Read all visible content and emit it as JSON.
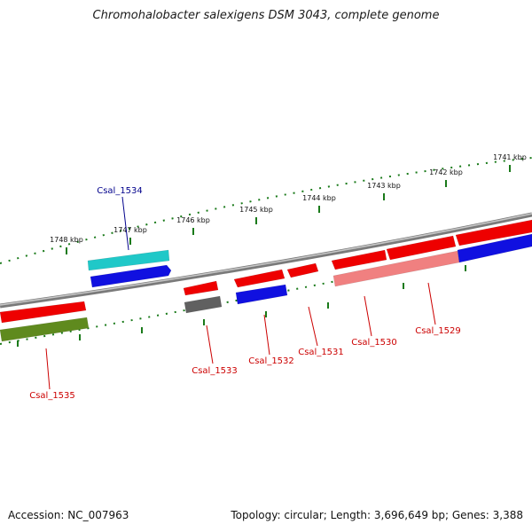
{
  "title": "Chromohalobacter salexigens DSM 3043, complete genome",
  "footer": {
    "accession": "Accession: NC_007963",
    "topology": "Topology: circular; Length: 3,696,649 bp; Genes: 3,388"
  },
  "colors": {
    "backbone": "#8a8a8a",
    "scale": "#1a7a1a",
    "label_red": "#cc0000",
    "label_blue": "#00008b",
    "red": "#ee0000",
    "pink": "#f08080",
    "blue": "#1010e0",
    "cyan": "#20c8c8",
    "gray": "#606060",
    "olive": "#5f8a1e"
  },
  "scale_ticks": [
    {
      "label": "1741 kbp"
    },
    {
      "label": "1742 kbp"
    },
    {
      "label": "1743 kbp"
    },
    {
      "label": "1744 kbp"
    },
    {
      "label": "1745 kbp"
    },
    {
      "label": "1746 kbp"
    },
    {
      "label": "1747 kbp"
    },
    {
      "label": "1748 kbp"
    }
  ],
  "gene_labels": [
    {
      "name": "Csal_1534",
      "color": "blue"
    },
    {
      "name": "Csal_1533",
      "color": "red"
    },
    {
      "name": "Csal_1532",
      "color": "red"
    },
    {
      "name": "Csal_1531",
      "color": "red"
    },
    {
      "name": "Csal_1530",
      "color": "red"
    },
    {
      "name": "Csal_1529",
      "color": "red"
    },
    {
      "name": "Csal_1535",
      "color": "red"
    }
  ]
}
